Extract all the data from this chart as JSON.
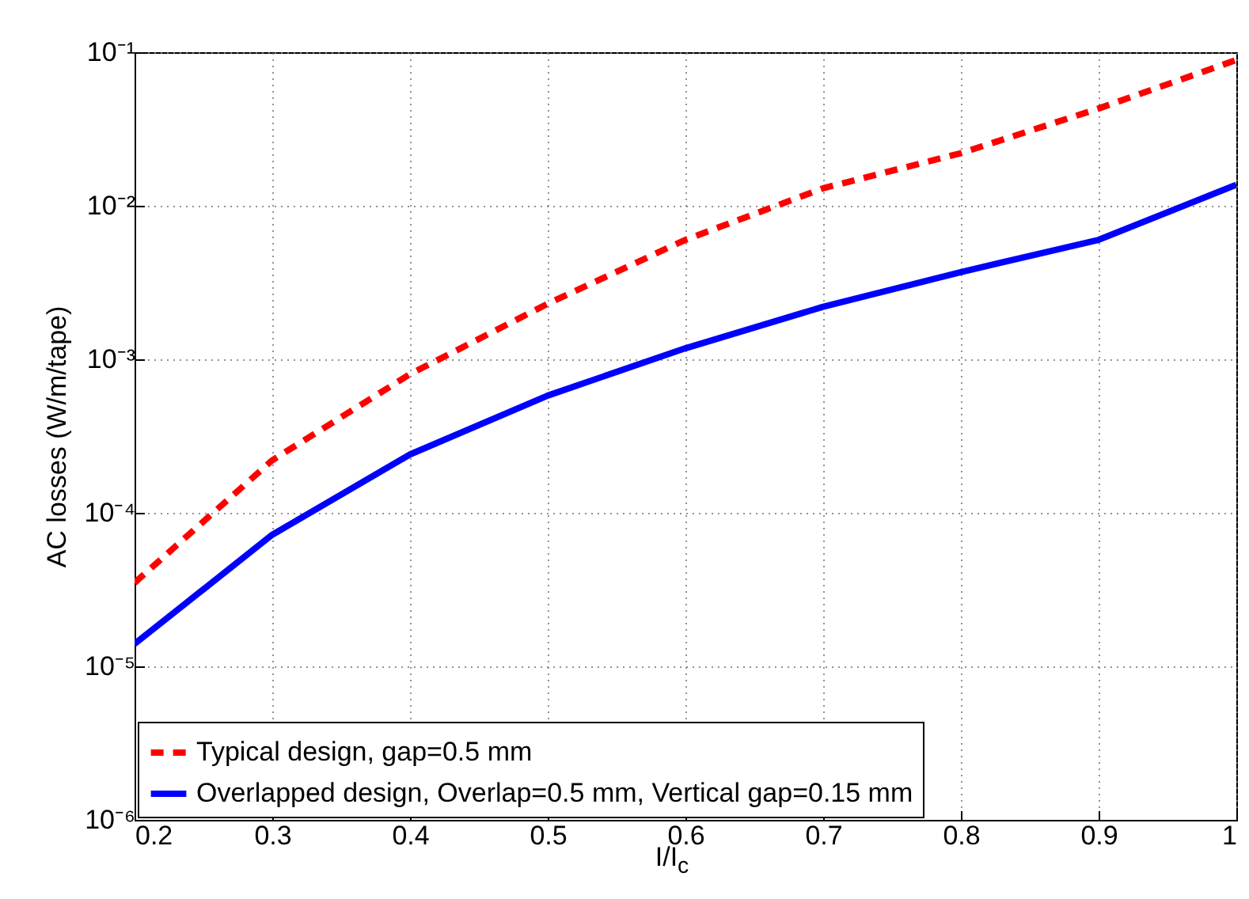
{
  "chart_data": {
    "type": "line",
    "xlabel": "I/I$_{c}$",
    "ylabel": "AC losses (W/m/tape)",
    "x": [
      0.2,
      0.3,
      0.4,
      0.5,
      0.6,
      0.7,
      0.8,
      0.9,
      1.0
    ],
    "series": [
      {
        "name": "Typical design, gap=0.5 mm",
        "color": "#ff0000",
        "line_style": "dashed",
        "values": [
          3.5e-05,
          0.00022,
          0.0008,
          0.0023,
          0.006,
          0.013,
          0.022,
          0.043,
          0.089
        ]
      },
      {
        "name": "Overlapped design, Overlap=0.5 mm, Vertical gap=0.15 mm",
        "color": "#0000ff",
        "line_style": "solid",
        "values": [
          1.4e-05,
          7.2e-05,
          0.00024,
          0.00058,
          0.00118,
          0.0022,
          0.0037,
          0.006,
          0.0137
        ]
      }
    ],
    "log": "y",
    "xlim": [
      0.2,
      1
    ],
    "xticks": [
      0.2,
      0.3,
      0.4,
      0.5,
      0.6,
      0.7,
      0.8,
      0.9,
      1
    ],
    "ylim": [
      1e-06,
      0.1
    ],
    "yticks": [
      {
        "value": 1e-06,
        "label": "10⁻⁶"
      },
      {
        "value": 1e-05,
        "label": "10⁻⁵"
      },
      {
        "value": 0.0001,
        "label": "10⁻⁴"
      },
      {
        "value": 0.001,
        "label": "10⁻³"
      },
      {
        "value": 0.01,
        "label": "10⁻²"
      },
      {
        "value": 0.1,
        "label": "10⁻¹"
      }
    ],
    "grid": true,
    "legend": "bottom left",
    "marker": "none"
  }
}
